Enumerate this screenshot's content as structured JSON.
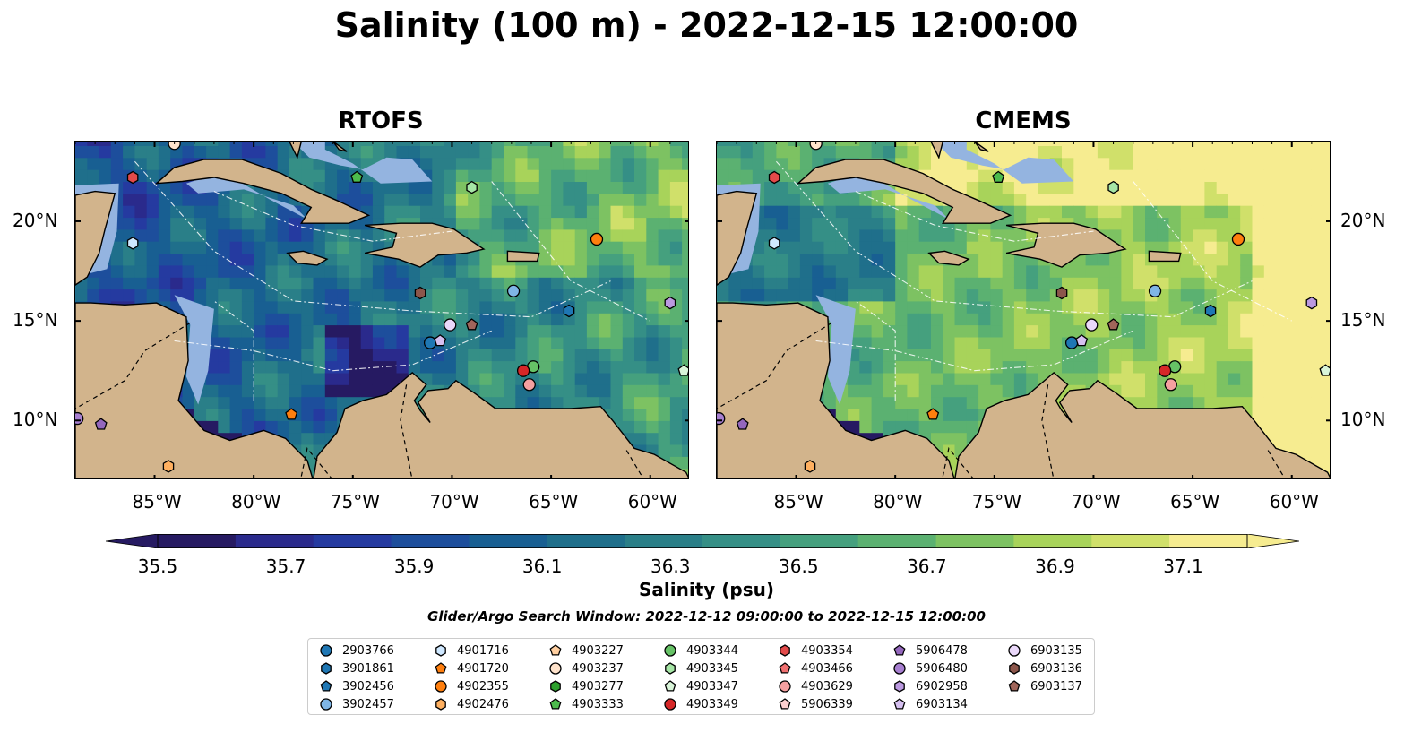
{
  "title": "Salinity (100 m) - 2022-12-15 12:00:00",
  "panels": [
    {
      "title": "RTOFS",
      "field": "rtofs"
    },
    {
      "title": "CMEMS",
      "field": "cmems"
    }
  ],
  "map": {
    "lon_range": [
      -89,
      -58
    ],
    "lat_range": [
      7,
      24
    ],
    "lon_ticks": [
      "85°W",
      "80°W",
      "75°W",
      "70°W",
      "65°W",
      "60°W"
    ],
    "lat_ticks": [
      "20°N",
      "15°N",
      "10°N"
    ],
    "colors": {
      "land": "#d2b48c",
      "shelf": "#94b4e0",
      "coast": "#000000"
    }
  },
  "colorbar": {
    "label": "Salinity (psu)",
    "ticks": [
      "35.5",
      "35.7",
      "35.9",
      "36.1",
      "36.3",
      "36.5",
      "36.7",
      "36.9",
      "37.1"
    ],
    "range": [
      35.5,
      37.2
    ],
    "colors": [
      "#261a62",
      "#2a2a8c",
      "#253aa0",
      "#1d4e9c",
      "#185f92",
      "#1f6f8b",
      "#2a7f88",
      "#358f86",
      "#45a07e",
      "#5bb171",
      "#7dc262",
      "#a8d35a",
      "#d0e06a",
      "#f6ec90"
    ],
    "extend": "both"
  },
  "search_window": "Glider/Argo Search Window: 2022-12-12 09:00:00 to 2022-12-15 12:00:00",
  "floats": [
    {
      "id": "2903766",
      "color": "#1f77b4",
      "marker": "circle",
      "lon": -71.1,
      "lat": 13.9
    },
    {
      "id": "3901861",
      "color": "#1f77b4",
      "marker": "hexagon",
      "lon": -64.1,
      "lat": 15.5
    },
    {
      "id": "3902456",
      "color": "#1f77b4",
      "marker": "pentagon",
      "lon": null,
      "lat": null
    },
    {
      "id": "3902457",
      "color": "#7fb6e6",
      "marker": "circle",
      "lon": -66.9,
      "lat": 16.5
    },
    {
      "id": "4901716",
      "color": "#cfe8ff",
      "marker": "hexagon",
      "lon": -86.1,
      "lat": 18.9
    },
    {
      "id": "4901720",
      "color": "#ff7f0e",
      "marker": "pentagon",
      "lon": -78.1,
      "lat": 10.3
    },
    {
      "id": "4902355",
      "color": "#ff7f0e",
      "marker": "circle",
      "lon": -62.7,
      "lat": 19.1
    },
    {
      "id": "4902476",
      "color": "#ffb060",
      "marker": "hexagon",
      "lon": -84.3,
      "lat": 7.7
    },
    {
      "id": "4903227",
      "color": "#ffcfa0",
      "marker": "pentagon",
      "lon": null,
      "lat": null
    },
    {
      "id": "4903237",
      "color": "#ffe3cc",
      "marker": "circle",
      "lon": -84.0,
      "lat": 23.9
    },
    {
      "id": "4903277",
      "color": "#2ca02c",
      "marker": "hexagon",
      "lon": null,
      "lat": null
    },
    {
      "id": "4903333",
      "color": "#4cbb4c",
      "marker": "pentagon",
      "lon": -74.8,
      "lat": 22.2
    },
    {
      "id": "4903344",
      "color": "#66c266",
      "marker": "circle",
      "lon": -65.9,
      "lat": 12.7
    },
    {
      "id": "4903345",
      "color": "#a6e6a6",
      "marker": "hexagon",
      "lon": -69.0,
      "lat": 21.7
    },
    {
      "id": "4903347",
      "color": "#d9f5d9",
      "marker": "pentagon",
      "lon": -58.3,
      "lat": 12.5
    },
    {
      "id": "4903349",
      "color": "#d62728",
      "marker": "circle",
      "lon": -66.4,
      "lat": 12.5
    },
    {
      "id": "4903354",
      "color": "#e34a4a",
      "marker": "hexagon",
      "lon": -86.1,
      "lat": 22.2
    },
    {
      "id": "4903466",
      "color": "#f07070",
      "marker": "pentagon",
      "lon": null,
      "lat": null
    },
    {
      "id": "4903629",
      "color": "#f5a0a0",
      "marker": "circle",
      "lon": -66.1,
      "lat": 11.8
    },
    {
      "id": "5906339",
      "color": "#fcd0d0",
      "marker": "pentagon",
      "lon": null,
      "lat": null
    },
    {
      "id": "5906478",
      "color": "#9467bd",
      "marker": "pentagon",
      "lon": -87.7,
      "lat": 9.8
    },
    {
      "id": "5906480",
      "color": "#a77fd0",
      "marker": "circle",
      "lon": -88.9,
      "lat": 10.1
    },
    {
      "id": "6902958",
      "color": "#bb99e0",
      "marker": "hexagon",
      "lon": -59.0,
      "lat": 15.9
    },
    {
      "id": "6903134",
      "color": "#d6c0f0",
      "marker": "pentagon",
      "lon": -70.6,
      "lat": 14.0
    },
    {
      "id": "6903135",
      "color": "#ead8fa",
      "marker": "circle",
      "lon": -70.1,
      "lat": 14.8
    },
    {
      "id": "6903136",
      "color": "#8c564b",
      "marker": "hexagon",
      "lon": -71.6,
      "lat": 16.4
    },
    {
      "id": "6903137",
      "color": "#a0655a",
      "marker": "pentagon",
      "lon": -69.0,
      "lat": 14.8
    }
  ]
}
